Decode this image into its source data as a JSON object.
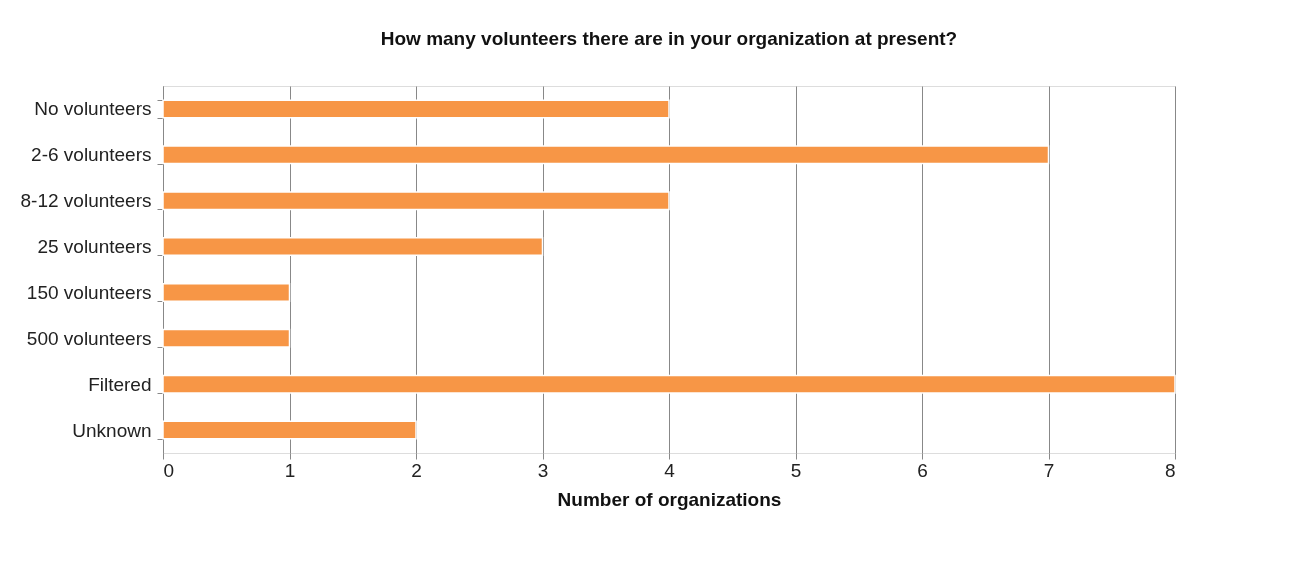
{
  "chart_data": {
    "type": "bar",
    "orientation": "horizontal",
    "title": "How many volunteers there are in your organization at present?",
    "categories": [
      "No volunteers",
      "2-6 volunteers",
      "8-12 volunteers",
      "25 volunteers",
      "150 volunteers",
      "500 volunteers",
      "Filtered",
      "Unknown"
    ],
    "values": [
      4,
      7,
      4,
      3,
      1,
      1,
      8,
      2
    ],
    "color": "#f79646",
    "xlabel": "Number of organizations",
    "xlim": [
      0,
      8
    ],
    "xticks": [
      0,
      1,
      2,
      3,
      4,
      5,
      6,
      7,
      8
    ],
    "grid": "x"
  }
}
